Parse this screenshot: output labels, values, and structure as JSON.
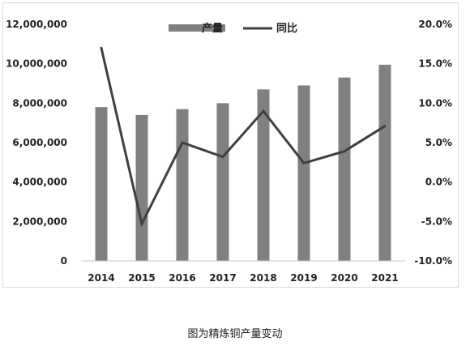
{
  "caption": "图为精炼铜产量变动",
  "colors": {
    "bar": "#808080",
    "line": "#404040"
  },
  "chart_data": {
    "type": "bar",
    "categories": [
      "2014",
      "2015",
      "2016",
      "2017",
      "2018",
      "2019",
      "2020",
      "2021"
    ],
    "series": [
      {
        "name": "产量",
        "type": "bar",
        "axis": "left",
        "values": [
          7800000,
          7400000,
          7700000,
          8000000,
          8700000,
          8900000,
          9300000,
          9950000
        ]
      },
      {
        "name": "同比",
        "type": "line",
        "axis": "right",
        "values": [
          17.0,
          -5.3,
          5.0,
          3.2,
          9.0,
          2.4,
          3.9,
          7.1
        ]
      }
    ],
    "y_left": {
      "ylim": [
        0,
        12000000
      ],
      "ticks": [
        0,
        2000000,
        4000000,
        6000000,
        8000000,
        10000000,
        12000000
      ],
      "tick_labels": [
        "0",
        "2,000,000",
        "4,000,000",
        "6,000,000",
        "8,000,000",
        "10,000,000",
        "12,000,000"
      ]
    },
    "y_right": {
      "ylim": [
        -10,
        20
      ],
      "ticks": [
        -10,
        -5,
        0,
        5,
        10,
        15,
        20
      ],
      "tick_labels": [
        "-10.0%",
        "-5.0%",
        "0.0%",
        "5.0%",
        "10.0%",
        "15.0%",
        "20.0%"
      ]
    },
    "legend": {
      "position": "top-center",
      "entries": [
        "产量",
        "同比"
      ]
    },
    "grid": false
  }
}
